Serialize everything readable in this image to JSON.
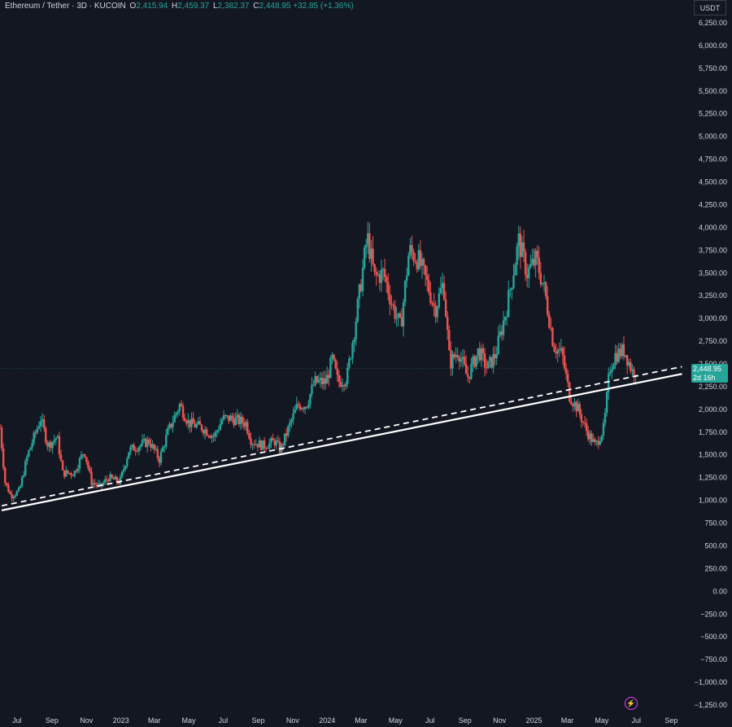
{
  "legend": {
    "symbol": "Ethereum / Tether · 3D · KUCOIN",
    "open_label": "O",
    "open": "2,415.94",
    "high_label": "H",
    "high": "2,459.37",
    "low_label": "L",
    "low": "2,382.37",
    "close_label": "C",
    "close": "2,448.95",
    "change": "+32.85 (+1.36%)"
  },
  "currency": "USDT",
  "price_tag": {
    "price": "2,448.95",
    "countdown": "2d 16h"
  },
  "colors": {
    "background": "#131722",
    "up": "#26a69a",
    "down": "#ef5350",
    "trendline": "#ffffff",
    "text": "#d1d4dc"
  },
  "chart_data": {
    "type": "candlestick",
    "title": "Ethereum / Tether · 3D · KUCOIN",
    "y_ticks": [
      "6,250.00",
      "6,000.00",
      "5,750.00",
      "5,500.00",
      "5,250.00",
      "5,000.00",
      "4,750.00",
      "4,500.00",
      "4,250.00",
      "4,000.00",
      "3,750.00",
      "3,500.00",
      "3,250.00",
      "3,000.00",
      "2,750.00",
      "2,500.00",
      "2,250.00",
      "2,000.00",
      "1,750.00",
      "1,500.00",
      "1,250.00",
      "1,000.00",
      "750.00",
      "500.00",
      "250.00",
      "0.00",
      "−250.00",
      "−500.00",
      "−750.00",
      "−1,000.00",
      "−1,250.00"
    ],
    "y_tick_values": [
      6250,
      6000,
      5750,
      5500,
      5250,
      5000,
      4750,
      4500,
      4250,
      4000,
      3750,
      3500,
      3250,
      3000,
      2750,
      2500,
      2250,
      2000,
      1750,
      1500,
      1250,
      1000,
      750,
      500,
      250,
      0,
      -250,
      -500,
      -750,
      -1000,
      -1250
    ],
    "x_ticks": [
      "Jul",
      "Sep",
      "Nov",
      "2023",
      "Mar",
      "May",
      "Jul",
      "Sep",
      "Nov",
      "2024",
      "Mar",
      "May",
      "Jul",
      "Sep",
      "Nov",
      "2025",
      "Mar",
      "May",
      "Jul",
      "Sep"
    ],
    "x_tick_dates": [
      "2022-07-01",
      "2022-09-01",
      "2022-11-01",
      "2023-01-01",
      "2023-03-01",
      "2023-05-01",
      "2023-07-01",
      "2023-09-01",
      "2023-11-01",
      "2024-01-01",
      "2024-03-01",
      "2024-05-01",
      "2024-07-01",
      "2024-09-01",
      "2024-11-01",
      "2025-01-01",
      "2025-03-01",
      "2025-05-01",
      "2025-07-01",
      "2025-09-01"
    ],
    "ylim": [
      -1250,
      6250
    ],
    "close_path": [
      [
        "2022-06-01",
        1800
      ],
      [
        "2022-06-10",
        1200
      ],
      [
        "2022-06-20",
        1050
      ],
      [
        "2022-07-05",
        1100
      ],
      [
        "2022-07-20",
        1500
      ],
      [
        "2022-08-12",
        1900
      ],
      [
        "2022-08-25",
        1600
      ],
      [
        "2022-09-10",
        1700
      ],
      [
        "2022-09-20",
        1300
      ],
      [
        "2022-10-10",
        1300
      ],
      [
        "2022-10-28",
        1550
      ],
      [
        "2022-11-10",
        1200
      ],
      [
        "2022-11-25",
        1150
      ],
      [
        "2022-12-10",
        1250
      ],
      [
        "2022-12-30",
        1200
      ],
      [
        "2023-01-15",
        1550
      ],
      [
        "2023-02-01",
        1600
      ],
      [
        "2023-02-20",
        1650
      ],
      [
        "2023-03-10",
        1450
      ],
      [
        "2023-03-25",
        1750
      ],
      [
        "2023-04-15",
        2050
      ],
      [
        "2023-05-01",
        1850
      ],
      [
        "2023-05-25",
        1800
      ],
      [
        "2023-06-15",
        1700
      ],
      [
        "2023-06-30",
        1900
      ],
      [
        "2023-07-15",
        1900
      ],
      [
        "2023-08-10",
        1850
      ],
      [
        "2023-08-20",
        1650
      ],
      [
        "2023-09-10",
        1600
      ],
      [
        "2023-10-01",
        1650
      ],
      [
        "2023-10-10",
        1550
      ],
      [
        "2023-10-25",
        1800
      ],
      [
        "2023-11-10",
        2050
      ],
      [
        "2023-11-25",
        2050
      ],
      [
        "2023-12-10",
        2300
      ],
      [
        "2023-12-30",
        2300
      ],
      [
        "2024-01-10",
        2550
      ],
      [
        "2024-01-20",
        2300
      ],
      [
        "2024-02-05",
        2350
      ],
      [
        "2024-02-20",
        2950
      ],
      [
        "2024-03-12",
        3900
      ],
      [
        "2024-03-25",
        3450
      ],
      [
        "2024-04-10",
        3500
      ],
      [
        "2024-04-25",
        3150
      ],
      [
        "2024-05-10",
        2900
      ],
      [
        "2024-05-25",
        3750
      ],
      [
        "2024-06-10",
        3650
      ],
      [
        "2024-06-25",
        3400
      ],
      [
        "2024-07-10",
        3100
      ],
      [
        "2024-07-25",
        3400
      ],
      [
        "2024-08-05",
        2500
      ],
      [
        "2024-08-20",
        2650
      ],
      [
        "2024-09-05",
        2350
      ],
      [
        "2024-09-25",
        2650
      ],
      [
        "2024-10-10",
        2450
      ],
      [
        "2024-10-25",
        2600
      ],
      [
        "2024-11-15",
        3150
      ],
      [
        "2024-12-05",
        3850
      ],
      [
        "2024-12-20",
        3500
      ],
      [
        "2025-01-05",
        3650
      ],
      [
        "2025-01-20",
        3300
      ],
      [
        "2025-02-05",
        2700
      ],
      [
        "2025-02-20",
        2600
      ],
      [
        "2025-03-05",
        2150
      ],
      [
        "2025-03-20",
        2000
      ],
      [
        "2025-04-05",
        1750
      ],
      [
        "2025-04-20",
        1600
      ],
      [
        "2025-05-05",
        1800
      ],
      [
        "2025-05-15",
        2450
      ],
      [
        "2025-05-25",
        2600
      ],
      [
        "2025-06-10",
        2650
      ],
      [
        "2025-06-25",
        2400
      ],
      [
        "2025-06-30",
        2450
      ]
    ],
    "trendlines": [
      {
        "style": "solid",
        "from": [
          "2022-06-04",
          890
        ],
        "to": [
          "2025-09-20",
          2390
        ]
      },
      {
        "style": "dashed",
        "from": [
          "2022-06-04",
          940
        ],
        "to": [
          "2025-09-20",
          2470
        ]
      }
    ],
    "last_price": 2448.95,
    "x_range": [
      "2022-06-01",
      "2025-09-25"
    ]
  }
}
